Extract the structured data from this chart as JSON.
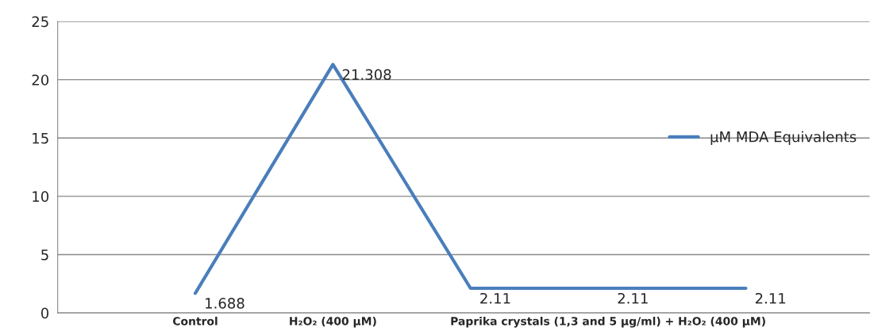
{
  "chart_data": {
    "type": "line",
    "categories": [
      "Control",
      "H₂O₂ (400 µM)",
      null,
      "Paprika crystals (1,3 and 5 µg/ml) + H₂O₂ (400 µM)",
      null
    ],
    "series": [
      {
        "name": "µM MDA Equivalents",
        "color": "#4a7ebb",
        "values": [
          1.688,
          21.308,
          2.11,
          2.11,
          2.11
        ]
      }
    ],
    "ylim": [
      0,
      25
    ],
    "yticks": [
      0,
      5,
      10,
      15,
      20,
      25
    ],
    "grid": "y",
    "legend": "right",
    "data_labels": true,
    "marker": "none"
  }
}
